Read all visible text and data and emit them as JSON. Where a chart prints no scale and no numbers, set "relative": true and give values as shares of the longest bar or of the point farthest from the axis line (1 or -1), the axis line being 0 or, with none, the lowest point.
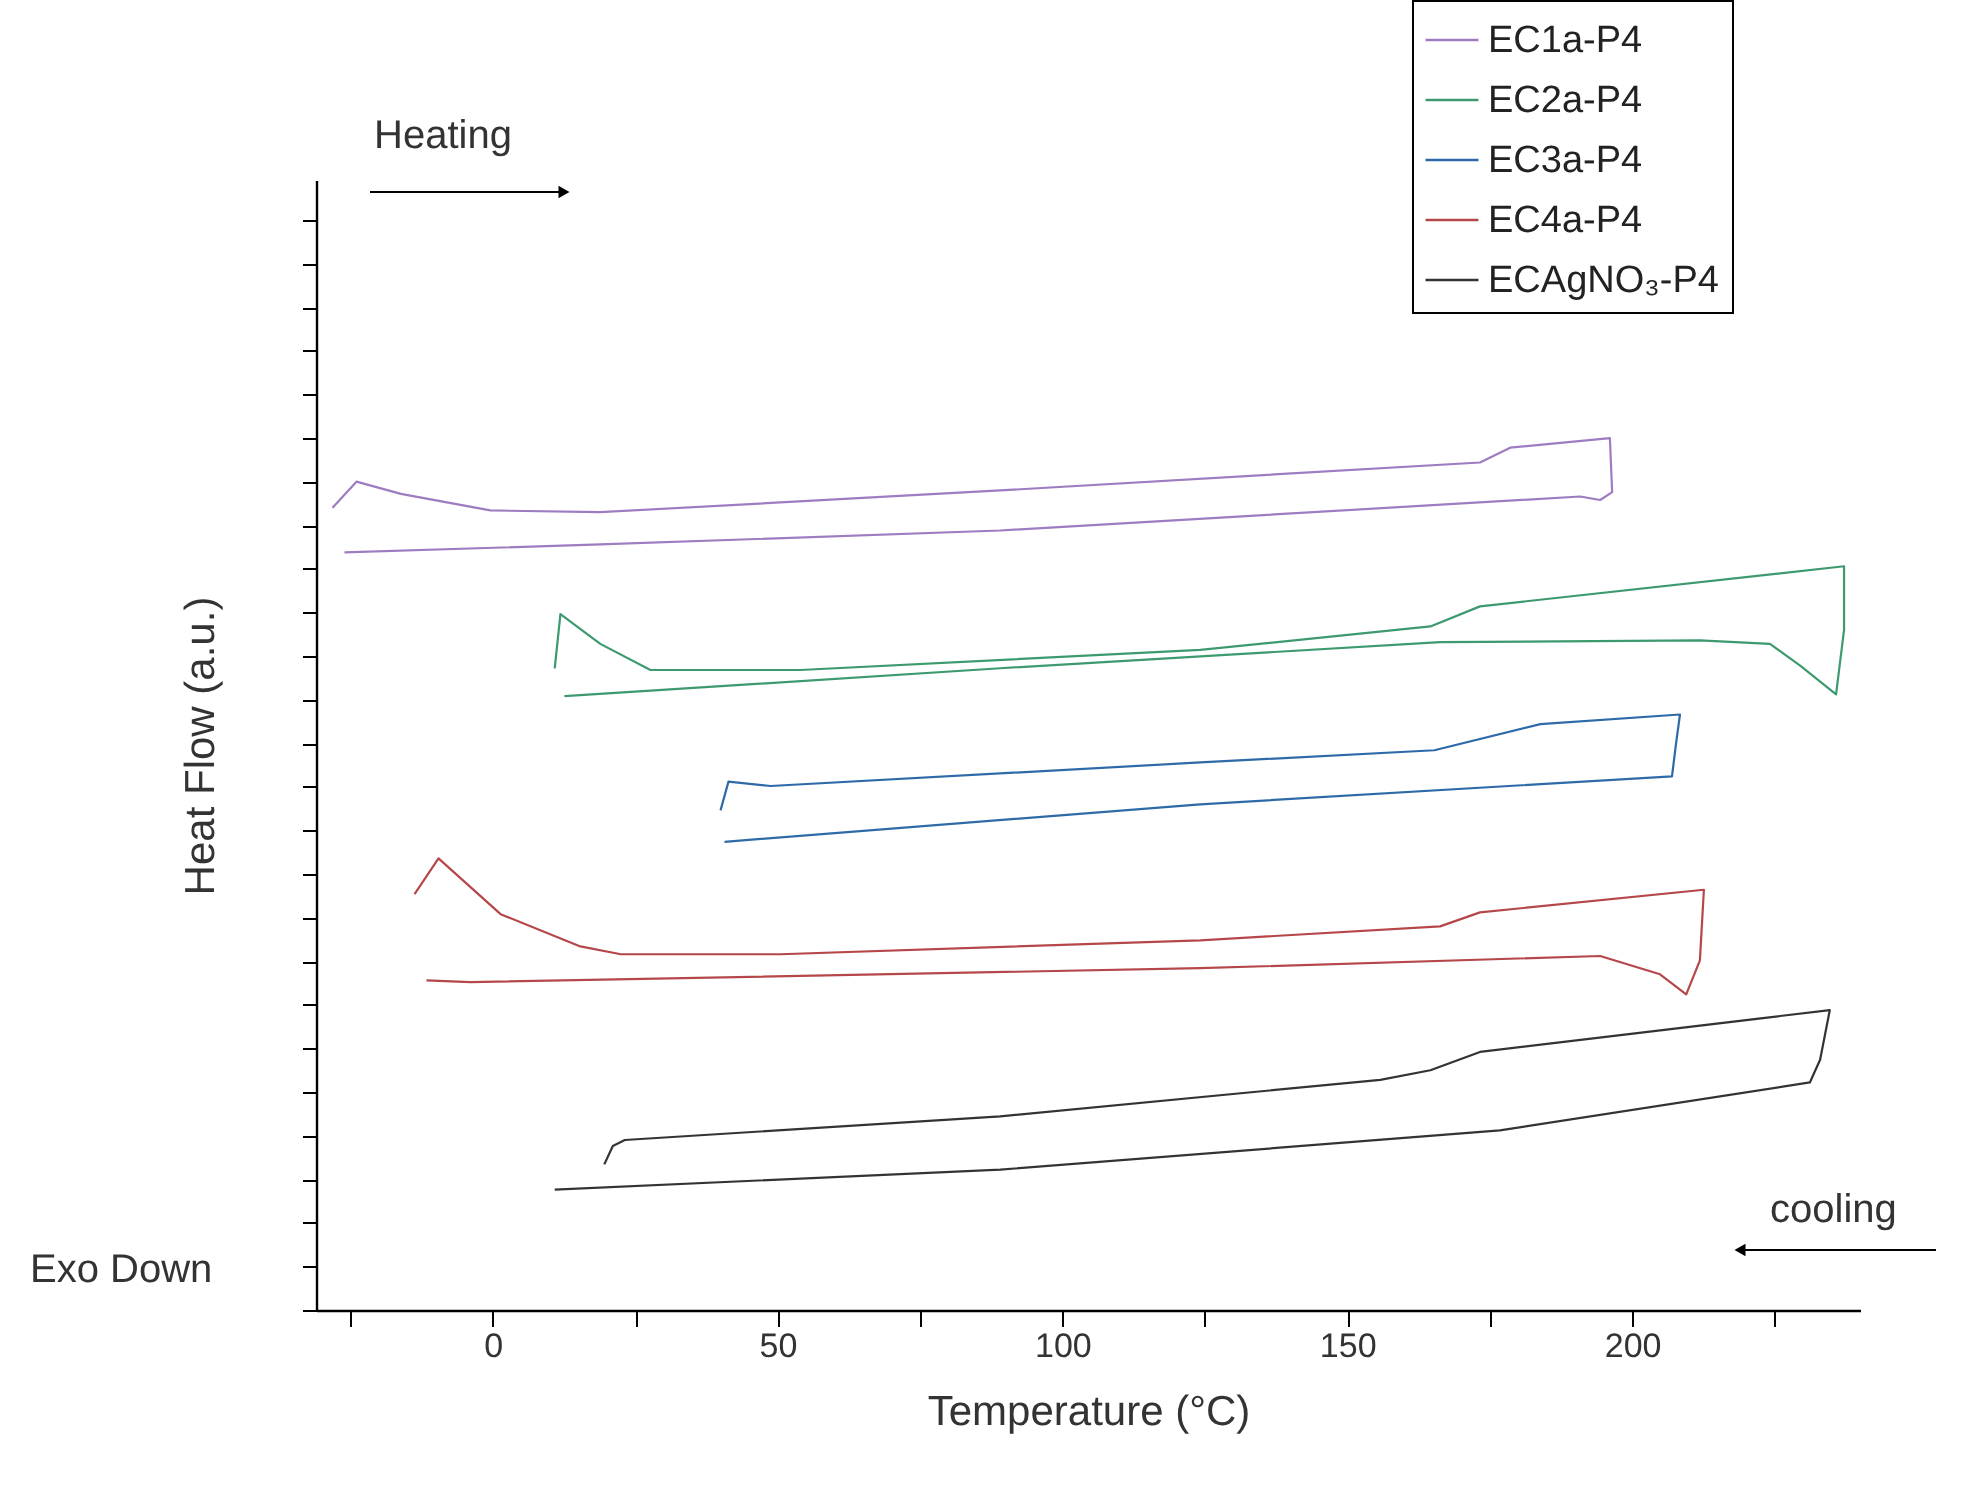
{
  "chart_data": {
    "type": "line",
    "relative": true,
    "xlabel": "Temperature (°C)",
    "ylabel": "Heat Flow (a.u.)",
    "xlim": [
      -31,
      240
    ],
    "xticks": [
      {
        "value": -25,
        "label": null
      },
      0,
      {
        "value": 25,
        "label": null
      },
      50,
      {
        "value": 75,
        "label": null
      },
      100,
      {
        "value": 125,
        "label": null
      },
      150,
      {
        "value": 175,
        "label": null
      },
      200,
      {
        "value": 225,
        "label": null
      }
    ],
    "grid": false,
    "legend": "top right",
    "line_style": "solid",
    "tick_labels": "x",
    "annotations": [
      "Heating",
      "cooling",
      "Exo Down"
    ],
    "series": [
      {
        "name": "EC1a-P4",
        "color": "#9e7cc1",
        "x": [
          -28.1,
          -23.9,
          -16.1,
          -0.4,
          18.9,
          89.1,
          173.3,
          178.6,
          196.1,
          196.5,
          194.4,
          190.9,
          89.1,
          18.9,
          -26.0
        ],
        "values": [
          0.92,
          0.95,
          0.936,
          0.917,
          0.915,
          0.94,
          0.972,
          0.989,
          1.0,
          0.938,
          0.929,
          0.933,
          0.894,
          0.878,
          0.869
        ]
      },
      {
        "name": "EC2a-P4",
        "color": "#3d9a6e",
        "x": [
          10.9,
          11.9,
          18.9,
          27.7,
          54.0,
          124.2,
          164.6,
          173.3,
          237.2,
          237.2,
          235.8,
          229.5,
          224.2,
          211.9,
          166.3,
          89.1,
          12.6
        ],
        "values": [
          0.736,
          0.798,
          0.764,
          0.734,
          0.734,
          0.757,
          0.784,
          0.807,
          0.853,
          0.78,
          0.706,
          0.739,
          0.764,
          0.768,
          0.766,
          0.736,
          0.704
        ]
      },
      {
        "name": "EC3a-P4",
        "color": "#2e6aa8",
        "x": [
          40.0,
          41.4,
          48.8,
          124.2,
          165.3,
          183.9,
          208.4,
          207.7,
          207.0,
          124.2,
          40.7
        ],
        "values": [
          0.573,
          0.606,
          0.601,
          0.628,
          0.642,
          0.672,
          0.683,
          0.649,
          0.612,
          0.58,
          0.537
        ]
      },
      {
        "name": "EC4a-P4",
        "color": "#b5474a",
        "x": [
          -13.7,
          -9.5,
          1.4,
          15.4,
          22.5,
          50.5,
          124.2,
          166.3,
          173.3,
          212.6,
          211.9,
          209.5,
          204.9,
          194.4,
          124.2,
          -3.9,
          -11.6
        ],
        "values": [
          0.477,
          0.518,
          0.454,
          0.417,
          0.408,
          0.408,
          0.424,
          0.44,
          0.456,
          0.482,
          0.401,
          0.362,
          0.385,
          0.406,
          0.392,
          0.376,
          0.378
        ]
      },
      {
        "name": "ECAgNO₃-P4",
        "color": "#333333",
        "x": [
          19.6,
          21.1,
          23.2,
          89.1,
          155.8,
          164.6,
          173.3,
          234.7,
          233.0,
          231.2,
          176.8,
          89.1,
          10.9
        ],
        "values": [
          0.167,
          0.188,
          0.195,
          0.222,
          0.264,
          0.275,
          0.296,
          0.344,
          0.287,
          0.261,
          0.206,
          0.161,
          0.138
        ]
      }
    ]
  }
}
